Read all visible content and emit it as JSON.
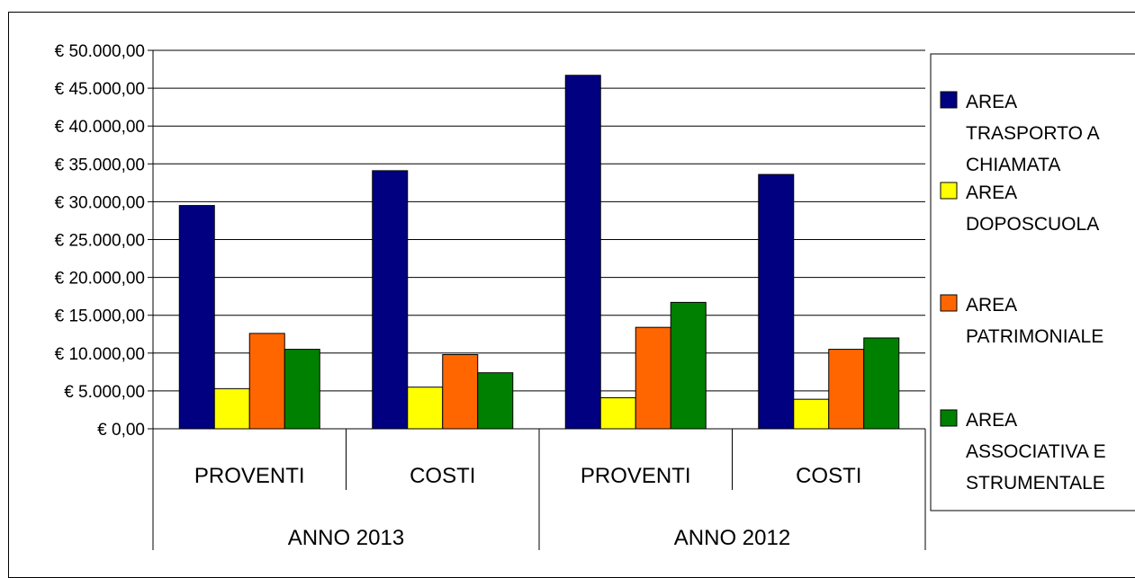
{
  "chart_data": {
    "type": "bar",
    "groups": [
      {
        "label": "ANNO 2013",
        "categories": [
          "PROVENTI",
          "COSTI"
        ]
      },
      {
        "label": "ANNO 2012",
        "categories": [
          "PROVENTI",
          "COSTI"
        ]
      }
    ],
    "categories": [
      "PROVENTI",
      "COSTI",
      "PROVENTI",
      "COSTI"
    ],
    "series": [
      {
        "name": "AREA TRASPORTO A CHIAMATA",
        "name_lines": [
          "AREA",
          "TRASPORTO A",
          "CHIAMATA"
        ],
        "color": "#000080",
        "values": [
          29500,
          34100,
          46700,
          33600
        ]
      },
      {
        "name": "AREA DOPOSCUOLA",
        "name_lines": [
          "AREA",
          "DOPOSCUOLA"
        ],
        "color": "#FFFF00",
        "values": [
          5300,
          5500,
          4100,
          3900
        ]
      },
      {
        "name": "AREA PATRIMONIALE",
        "name_lines": [
          "AREA",
          "PATRIMONIALE"
        ],
        "color": "#FF6600",
        "values": [
          12600,
          9800,
          13400,
          10500
        ]
      },
      {
        "name": "AREA ASSOCIATIVA E STRUMENTALE",
        "name_lines": [
          "AREA",
          "ASSOCIATIVA E",
          "STRUMENTALE"
        ],
        "color": "#008000",
        "values": [
          10500,
          7400,
          16700,
          12000
        ]
      }
    ],
    "y_ticks": [
      "€ 0,00",
      "€ 5.000,00",
      "€ 10.000,00",
      "€ 15.000,00",
      "€ 20.000,00",
      "€ 25.000,00",
      "€ 30.000,00",
      "€ 35.000,00",
      "€ 40.000,00",
      "€ 45.000,00",
      "€ 50.000,00"
    ],
    "ylim": [
      0,
      50000
    ],
    "grid": true,
    "legend_position": "right",
    "title": "",
    "xlabel": "",
    "ylabel": ""
  }
}
